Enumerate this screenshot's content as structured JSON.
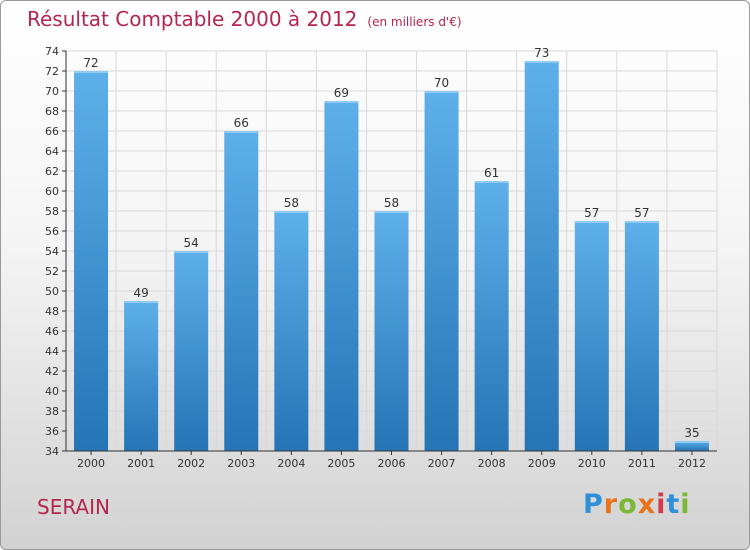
{
  "title": "Résultat Comptable 2000 à 2012",
  "subtitle": "(en milliers d'€)",
  "commune": "SERAIN",
  "brand": {
    "letters": [
      "P",
      "r",
      "o",
      "x",
      "i",
      "t",
      "i"
    ],
    "colors": [
      "#2f8fd8",
      "#e8731c",
      "#7ab836",
      "#e8731c",
      "#d63a4a",
      "#2f8fd8",
      "#7ab836"
    ]
  },
  "colors": {
    "title": "#b5264f",
    "bar_top": "#5eb0ea",
    "bar_bottom": "#2574b6",
    "grid": "#d9d9d9",
    "axis": "#333333"
  },
  "chart_data": {
    "type": "bar",
    "title": "Résultat Comptable 2000 à 2012",
    "subtitle": "(en milliers d'€)",
    "xlabel": "",
    "ylabel": "",
    "categories": [
      "2000",
      "2001",
      "2002",
      "2003",
      "2004",
      "2005",
      "2006",
      "2007",
      "2008",
      "2009",
      "2010",
      "2011",
      "2012"
    ],
    "values": [
      72,
      49,
      54,
      66,
      58,
      69,
      58,
      70,
      61,
      73,
      57,
      57,
      35
    ],
    "ylim": [
      34,
      74
    ],
    "yticks": [
      34,
      36,
      38,
      40,
      42,
      44,
      46,
      48,
      50,
      52,
      54,
      56,
      58,
      60,
      62,
      64,
      66,
      68,
      70,
      72,
      74
    ],
    "grid": true,
    "data_labels": true
  }
}
